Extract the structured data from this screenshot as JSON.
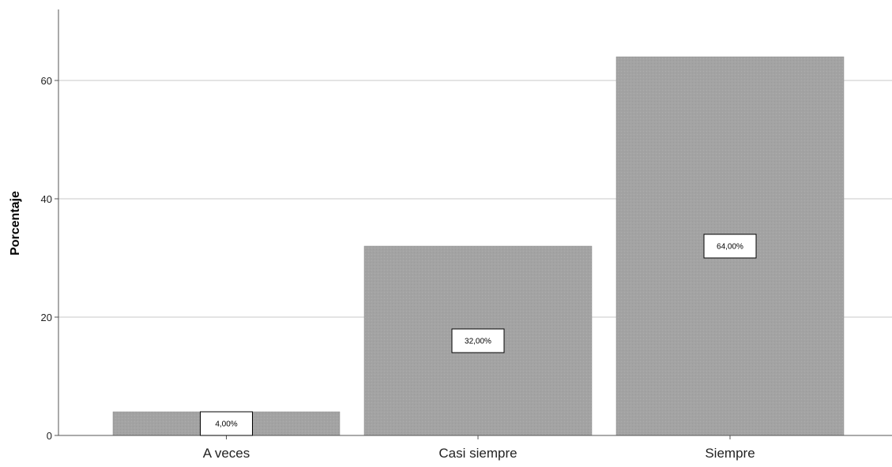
{
  "chart_data": {
    "type": "bar",
    "title": "",
    "xlabel": "",
    "ylabel": "Porcentaje",
    "categories": [
      "A veces",
      "Casi siempre",
      "Siempre"
    ],
    "values": [
      4,
      32,
      64
    ],
    "data_labels": [
      "4,00%",
      "32,00%",
      "64,00%"
    ],
    "ylim": [
      0,
      72
    ],
    "yticks": [
      0,
      20,
      40,
      60
    ],
    "ytick_labels": [
      "0",
      "20",
      "40",
      "60"
    ],
    "grid": true,
    "legend": "none",
    "colors": {
      "bar": "#a3a3a3",
      "gridline": "#c8c8c8",
      "axis": "#555555",
      "label_box_border": "#000000",
      "label_box_fill": "#ffffff"
    }
  }
}
